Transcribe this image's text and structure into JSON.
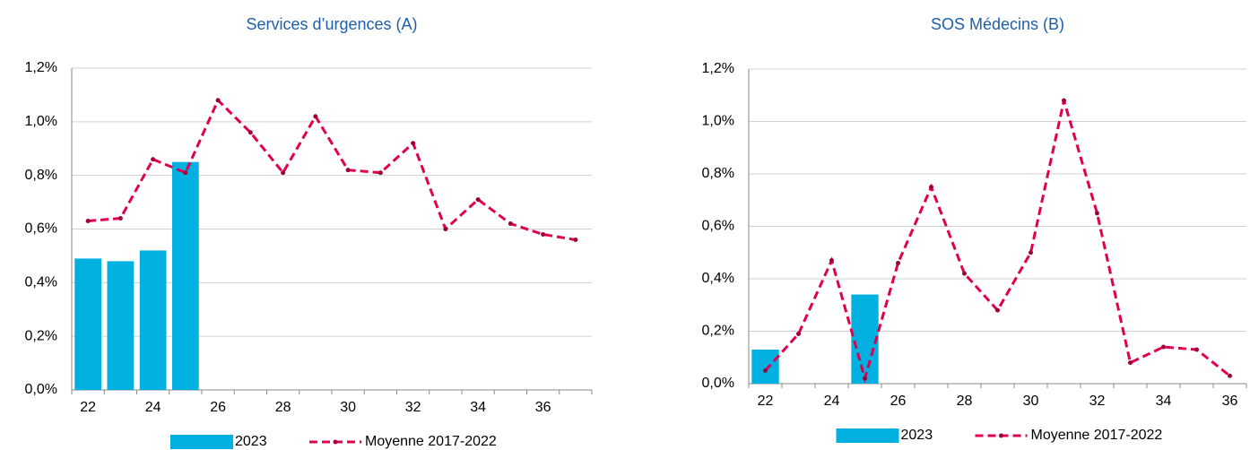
{
  "chart_data": [
    {
      "type": "combo",
      "title": "Services d’urgences (A)",
      "categories": [
        "22",
        null,
        "24",
        null,
        "26",
        null,
        "28",
        null,
        "30",
        null,
        "32",
        null,
        "34",
        null,
        "36",
        null
      ],
      "series": [
        {
          "name": "2023",
          "type": "bar",
          "color": "#00b0e0",
          "values": [
            0.49,
            0.48,
            0.52,
            0.85,
            null,
            null,
            null,
            null,
            null,
            null,
            null,
            null,
            null,
            null,
            null,
            null
          ]
        },
        {
          "name": "Moyenne 2017-2022",
          "type": "line",
          "color": "#e0004f",
          "values": [
            0.63,
            0.64,
            0.86,
            0.81,
            1.08,
            0.96,
            0.81,
            1.02,
            0.82,
            0.81,
            0.92,
            0.6,
            0.71,
            0.62,
            0.58,
            0.56
          ]
        }
      ],
      "ylim": [
        0,
        1.2
      ],
      "yticks": [
        {
          "value": 0,
          "label": "0,0%"
        },
        {
          "value": 0.2,
          "label": "0,2%"
        },
        {
          "value": 0.4,
          "label": "0,4%"
        },
        {
          "value": 0.6,
          "label": "0,6%"
        },
        {
          "value": 0.8,
          "label": "0,8%"
        },
        {
          "value": 1.0,
          "label": "1,0%"
        },
        {
          "value": 1.2,
          "label": "1,2%"
        }
      ],
      "grid": true
    },
    {
      "type": "combo",
      "title": "SOS Médecins (B)",
      "categories": [
        "22",
        null,
        "24",
        null,
        "26",
        null,
        "28",
        null,
        "30",
        null,
        "32",
        null,
        "34",
        null,
        "36"
      ],
      "series": [
        {
          "name": "2023",
          "type": "bar",
          "color": "#00b0e0",
          "values": [
            0.13,
            null,
            null,
            0.34,
            null,
            null,
            null,
            null,
            null,
            null,
            null,
            null,
            null,
            null,
            null
          ]
        },
        {
          "name": "Moyenne 2017-2022",
          "type": "line",
          "color": "#e0004f",
          "values": [
            0.05,
            0.19,
            0.47,
            0.02,
            0.46,
            0.75,
            0.42,
            0.28,
            0.5,
            1.08,
            0.65,
            0.08,
            0.14,
            0.13,
            0.03
          ]
        }
      ],
      "ylim": [
        0,
        1.2
      ],
      "yticks": [
        {
          "value": 0,
          "label": "0,0%"
        },
        {
          "value": 0.2,
          "label": "0,2%"
        },
        {
          "value": 0.4,
          "label": "0,4%"
        },
        {
          "value": 0.6,
          "label": "0,6%"
        },
        {
          "value": 0.8,
          "label": "0,8%"
        },
        {
          "value": 1.0,
          "label": "1,0%"
        },
        {
          "value": 1.2,
          "label": "1,2%"
        }
      ],
      "grid": true
    }
  ]
}
